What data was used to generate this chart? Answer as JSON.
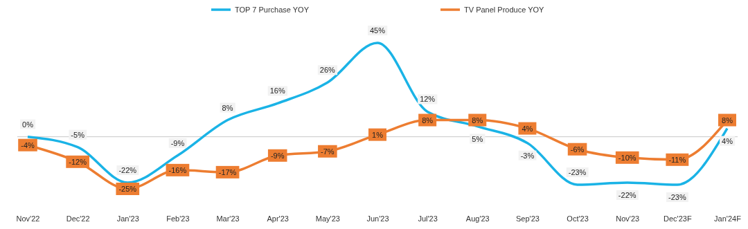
{
  "chart_data": {
    "type": "line",
    "categories": [
      "Nov'22",
      "Dec'22",
      "Jan'23",
      "Feb'23",
      "Mar'23",
      "Apr'23",
      "May'23",
      "Jun'23",
      "Jul'23",
      "Aug'23",
      "Sep'23",
      "Oct'23",
      "Nov'23",
      "Dec'23F",
      "Jan'24F"
    ],
    "series": [
      {
        "name": "TOP 7 Purchase YOY",
        "color": "#1ab3e6",
        "values": [
          0,
          -5,
          -22,
          -9,
          8,
          16,
          26,
          45,
          12,
          5,
          -3,
          -23,
          -22,
          -23,
          4
        ],
        "value_labels": [
          "0%",
          "-5%",
          "-22%",
          "-9%",
          "8%",
          "16%",
          "26%",
          "45%",
          "12%",
          "5%",
          "-3%",
          "-23%",
          "-22%",
          "-23%",
          "4%"
        ]
      },
      {
        "name": "TV Panel Produce YOY",
        "color": "#ed7d31",
        "marker": "square",
        "values": [
          -4,
          -12,
          -25,
          -16,
          -17,
          -9,
          -7,
          1,
          8,
          8,
          4,
          -6,
          -10,
          -11,
          8
        ],
        "value_labels": [
          "-4%",
          "-12%",
          "-25%",
          "-16%",
          "-17%",
          "-9%",
          "-7%",
          "1%",
          "8%",
          "8%",
          "4%",
          "-6%",
          "-10%",
          "-11%",
          "8%"
        ]
      }
    ],
    "tick_labels": "x",
    "legend": "top"
  }
}
